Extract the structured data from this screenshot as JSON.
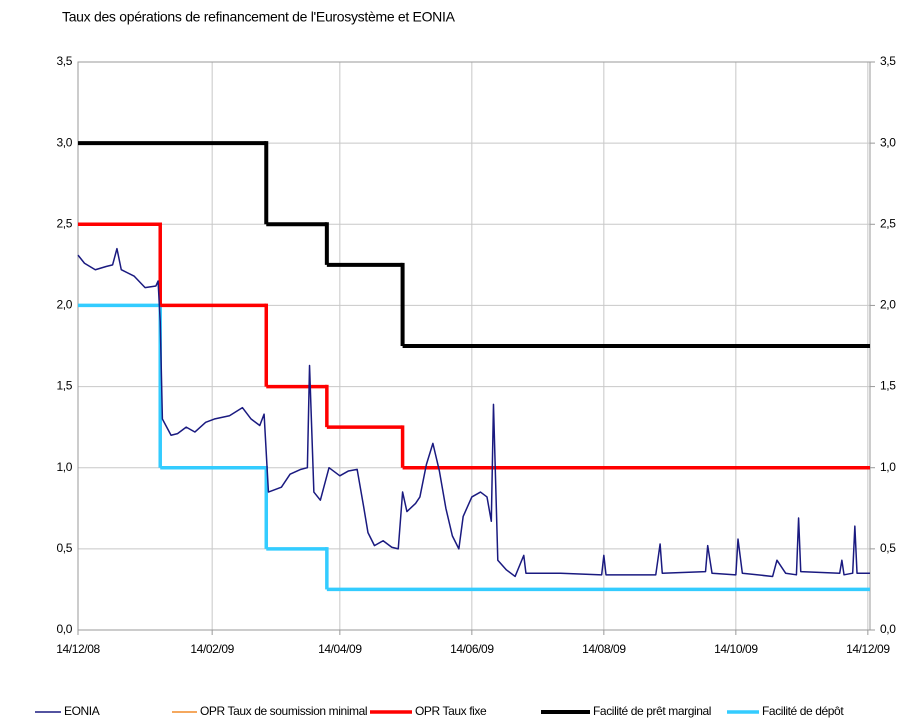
{
  "chart_data": {
    "type": "line",
    "title": "Taux des opérations de refinancement de l'Eurosystème et EONIA",
    "xlim": [
      "2008-12-14",
      "2009-12-15"
    ],
    "xticks": [
      {
        "value": "2008-12-14",
        "label": "14/12/08"
      },
      {
        "value": "2009-02-14",
        "label": "14/02/09"
      },
      {
        "value": "2009-04-14",
        "label": "14/04/09"
      },
      {
        "value": "2009-06-14",
        "label": "14/06/09"
      },
      {
        "value": "2009-08-14",
        "label": "14/08/09"
      },
      {
        "value": "2009-10-14",
        "label": "14/10/09"
      },
      {
        "value": "2009-12-14",
        "label": "14/12/09"
      }
    ],
    "ylim": [
      0,
      3.5
    ],
    "yticks": [
      {
        "value": 0,
        "label": "0,0"
      },
      {
        "value": 0.5,
        "label": "0,5"
      },
      {
        "value": 1,
        "label": "1,0"
      },
      {
        "value": 1.5,
        "label": "1,5"
      },
      {
        "value": 2,
        "label": "2,0"
      },
      {
        "value": 2.5,
        "label": "2,5"
      },
      {
        "value": 3,
        "label": "3,0"
      },
      {
        "value": 3.5,
        "label": "3,5"
      }
    ],
    "y2lim": [
      0,
      3.5
    ],
    "y2ticks": [
      {
        "value": 0,
        "label": "0,0"
      },
      {
        "value": 0.5,
        "label": "0,5"
      },
      {
        "value": 1,
        "label": "1,0"
      },
      {
        "value": 1.5,
        "label": "1,5"
      },
      {
        "value": 2,
        "label": "2,0"
      },
      {
        "value": 2.5,
        "label": "2,5"
      },
      {
        "value": 3,
        "label": "3,0"
      },
      {
        "value": 3.5,
        "label": "3,5"
      }
    ],
    "grid": true,
    "legend": "bottom",
    "series": [
      {
        "name": "EONIA",
        "color": "#1a1a80",
        "width": 1.5,
        "drawstyle": "default",
        "x": [
          "2008-12-14",
          "2008-12-17",
          "2008-12-22",
          "2008-12-27",
          "2008-12-30",
          "2009-01-01",
          "2009-01-03",
          "2009-01-09",
          "2009-01-14",
          "2009-01-19",
          "2009-01-20",
          "2009-01-21",
          "2009-01-22",
          "2009-01-26",
          "2009-01-29",
          "2009-02-02",
          "2009-02-06",
          "2009-02-11",
          "2009-02-15",
          "2009-02-22",
          "2009-02-28",
          "2009-03-04",
          "2009-03-08",
          "2009-03-10",
          "2009-03-12",
          "2009-03-18",
          "2009-03-22",
          "2009-03-27",
          "2009-03-30",
          "2009-03-31",
          "2009-04-02",
          "2009-04-05",
          "2009-04-09",
          "2009-04-14",
          "2009-04-18",
          "2009-04-22",
          "2009-04-25",
          "2009-04-27",
          "2009-04-30",
          "2009-05-04",
          "2009-05-08",
          "2009-05-11",
          "2009-05-13",
          "2009-05-15",
          "2009-05-19",
          "2009-05-21",
          "2009-05-24",
          "2009-05-27",
          "2009-05-30",
          "2009-06-02",
          "2009-06-05",
          "2009-06-08",
          "2009-06-10",
          "2009-06-14",
          "2009-06-18",
          "2009-06-21",
          "2009-06-23",
          "2009-06-24",
          "2009-06-26",
          "2009-06-30",
          "2009-07-04",
          "2009-07-08",
          "2009-07-09",
          "2009-07-25",
          "2009-08-13",
          "2009-08-14",
          "2009-08-15",
          "2009-09-07",
          "2009-09-09",
          "2009-09-10",
          "2009-09-30",
          "2009-10-01",
          "2009-10-03",
          "2009-10-14",
          "2009-10-15",
          "2009-10-17",
          "2009-10-31",
          "2009-11-02",
          "2009-11-06",
          "2009-11-11",
          "2009-11-12",
          "2009-11-13",
          "2009-12-01",
          "2009-12-02",
          "2009-12-03",
          "2009-12-07",
          "2009-12-08",
          "2009-12-09",
          "2009-12-15"
        ],
        "values": [
          2.31,
          2.26,
          2.22,
          2.24,
          2.25,
          2.35,
          2.22,
          2.18,
          2.11,
          2.12,
          2.15,
          1.9,
          1.3,
          1.2,
          1.21,
          1.25,
          1.22,
          1.28,
          1.3,
          1.32,
          1.37,
          1.3,
          1.26,
          1.33,
          0.85,
          0.88,
          0.96,
          0.99,
          1.0,
          1.63,
          0.85,
          0.8,
          1.0,
          0.95,
          0.98,
          0.99,
          0.76,
          0.6,
          0.52,
          0.55,
          0.51,
          0.5,
          0.85,
          0.73,
          0.78,
          0.82,
          1.02,
          1.15,
          0.98,
          0.75,
          0.58,
          0.5,
          0.7,
          0.82,
          0.85,
          0.82,
          0.67,
          1.39,
          0.43,
          0.37,
          0.33,
          0.46,
          0.35,
          0.35,
          0.34,
          0.46,
          0.34,
          0.34,
          0.53,
          0.35,
          0.36,
          0.52,
          0.35,
          0.34,
          0.56,
          0.35,
          0.33,
          0.43,
          0.35,
          0.34,
          0.69,
          0.36,
          0.35,
          0.43,
          0.34,
          0.35,
          0.64,
          0.35,
          0.35
        ]
      },
      {
        "name": "OPR Taux de soumission minimal",
        "color": "#f28c28",
        "width": 1.5,
        "drawstyle": "steps-post",
        "x": [],
        "values": []
      },
      {
        "name": "OPR Taux fixe",
        "color": "#ff0000",
        "width": 3.5,
        "drawstyle": "steps-post",
        "x": [
          "2008-12-14",
          "2009-01-21",
          "2009-03-11",
          "2009-04-08",
          "2009-05-13",
          "2009-12-15"
        ],
        "values": [
          2.5,
          2.0,
          1.5,
          1.25,
          1.0,
          1.0
        ]
      },
      {
        "name": "Facilité de prêt marginal",
        "color": "#000000",
        "width": 4,
        "drawstyle": "steps-post",
        "x": [
          "2008-12-14",
          "2009-03-11",
          "2009-04-08",
          "2009-05-13",
          "2009-12-15"
        ],
        "values": [
          3.0,
          2.5,
          2.25,
          1.75,
          1.75
        ]
      },
      {
        "name": "Facilité de dépôt",
        "color": "#33ccff",
        "width": 3.5,
        "drawstyle": "steps-post",
        "x": [
          "2008-12-14",
          "2009-01-21",
          "2009-03-11",
          "2009-04-08",
          "2009-12-15"
        ],
        "values": [
          2.0,
          1.0,
          0.5,
          0.25,
          0.25
        ]
      }
    ]
  }
}
